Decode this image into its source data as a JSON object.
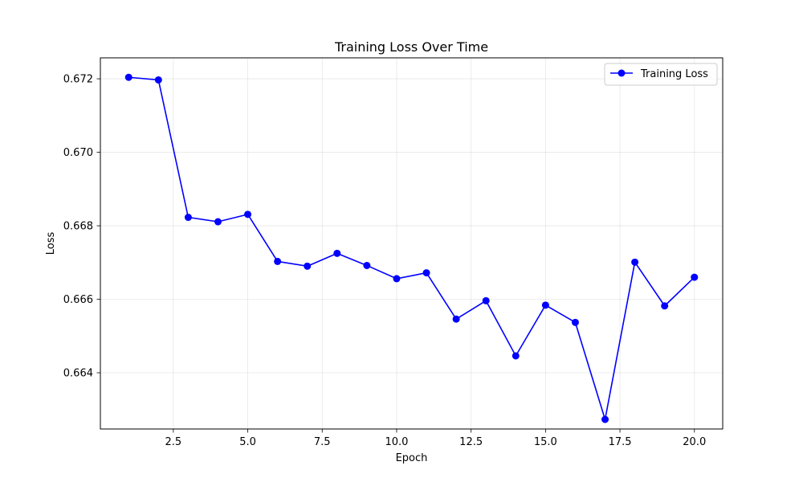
{
  "chart_data": {
    "type": "line",
    "title": "Training Loss Over Time",
    "xlabel": "Epoch",
    "ylabel": "Loss",
    "xlim": [
      0.05,
      20.95
    ],
    "ylim": [
      0.66247,
      0.67257
    ],
    "x_ticks": [
      2.5,
      5.0,
      7.5,
      10.0,
      12.5,
      15.0,
      17.5,
      20.0
    ],
    "x_tick_labels": [
      "2.5",
      "5.0",
      "7.5",
      "10.0",
      "12.5",
      "15.0",
      "17.5",
      "20.0"
    ],
    "y_ticks": [
      0.664,
      0.666,
      0.668,
      0.67,
      0.672
    ],
    "y_tick_labels": [
      "0.664",
      "0.666",
      "0.668",
      "0.670",
      "0.672"
    ],
    "grid": true,
    "legend_position": "top-right",
    "series": [
      {
        "name": "Training Loss",
        "color": "#0000ff",
        "marker": "circle",
        "x": [
          1,
          2,
          3,
          4,
          5,
          6,
          7,
          8,
          9,
          10,
          11,
          12,
          13,
          14,
          15,
          16,
          17,
          18,
          19,
          20
        ],
        "values": [
          0.67204,
          0.67197,
          0.66823,
          0.66811,
          0.66831,
          0.66703,
          0.6669,
          0.66725,
          0.66692,
          0.66656,
          0.66672,
          0.66546,
          0.66596,
          0.66446,
          0.66584,
          0.66537,
          0.66273,
          0.66701,
          0.66582,
          0.6666
        ]
      }
    ]
  }
}
